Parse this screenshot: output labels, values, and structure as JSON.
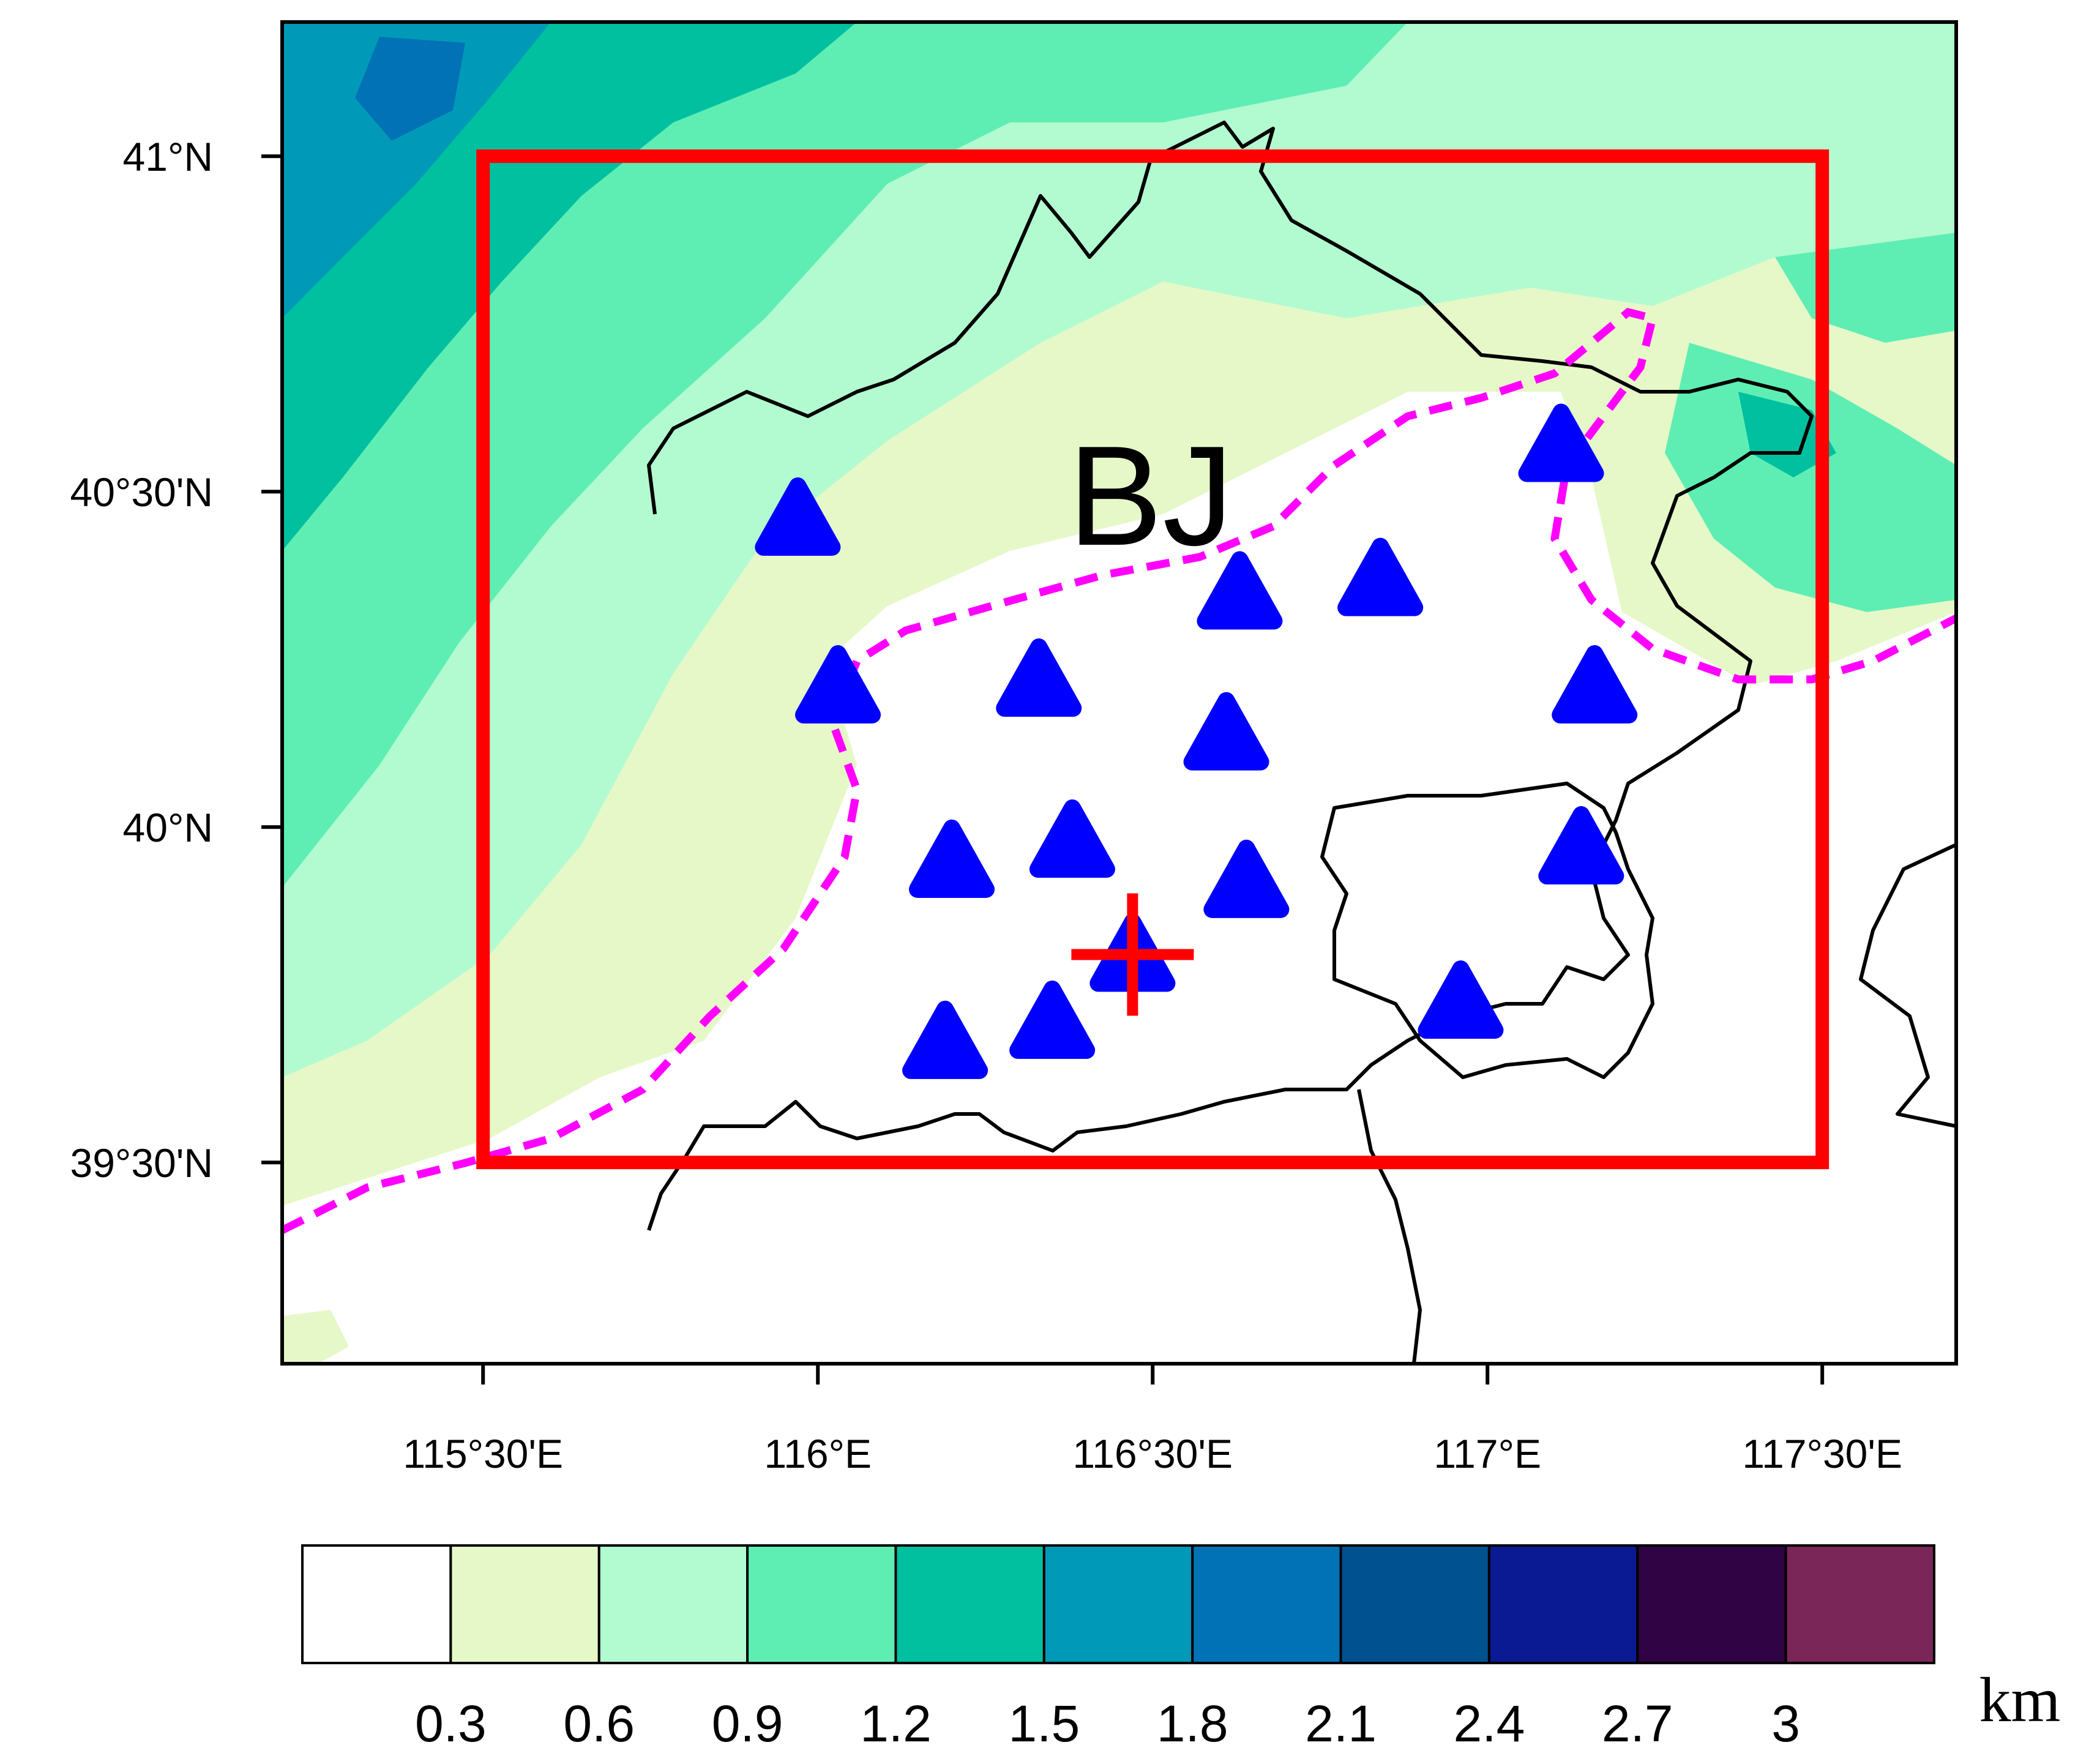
{
  "map": {
    "region_label": "BJ",
    "lon_ticks": [
      "115°30'E",
      "116°E",
      "116°30'E",
      "117°E",
      "117°30'E"
    ],
    "lat_ticks": [
      "41°N",
      "40°30'N",
      "40°N",
      "39°30'N"
    ],
    "extent": {
      "lon_min": 115.2,
      "lon_max": 117.7,
      "lat_min": 39.2,
      "lat_max": 41.2
    },
    "domain_box": {
      "lon_min": 115.5,
      "lon_max": 117.5,
      "lat_min": 39.5,
      "lat_max": 41.0,
      "color": "#ff0000"
    },
    "urban_boundary_color": "#ff00ff",
    "site_marker": {
      "lon": 116.47,
      "lat": 39.81,
      "color": "#ff0000"
    },
    "stations": [
      {
        "lon": 115.97,
        "lat": 40.45
      },
      {
        "lon": 116.03,
        "lat": 40.2
      },
      {
        "lon": 116.33,
        "lat": 40.21
      },
      {
        "lon": 116.63,
        "lat": 40.34
      },
      {
        "lon": 116.84,
        "lat": 40.36
      },
      {
        "lon": 116.61,
        "lat": 40.13
      },
      {
        "lon": 116.2,
        "lat": 39.94
      },
      {
        "lon": 116.38,
        "lat": 39.97
      },
      {
        "lon": 116.64,
        "lat": 39.91
      },
      {
        "lon": 116.47,
        "lat": 39.8
      },
      {
        "lon": 116.19,
        "lat": 39.67
      },
      {
        "lon": 116.35,
        "lat": 39.7
      },
      {
        "lon": 116.96,
        "lat": 39.73
      },
      {
        "lon": 117.11,
        "lat": 40.56
      },
      {
        "lon": 117.16,
        "lat": 40.2
      },
      {
        "lon": 117.14,
        "lat": 39.96
      }
    ],
    "station_color": "#0000ff"
  },
  "colorbar": {
    "unit": "km",
    "colors": [
      "#ffffff",
      "#e6f8c8",
      "#b2fbd0",
      "#5eeeb4",
      "#00c09f",
      "#009ab8",
      "#0072b5",
      "#005190",
      "#0a1a92",
      "#300344",
      "#7a2658"
    ],
    "labels": [
      "0.3",
      "0.6",
      "0.9",
      "1.2",
      "1.5",
      "1.8",
      "2.1",
      "2.4",
      "2.7",
      "3"
    ]
  }
}
